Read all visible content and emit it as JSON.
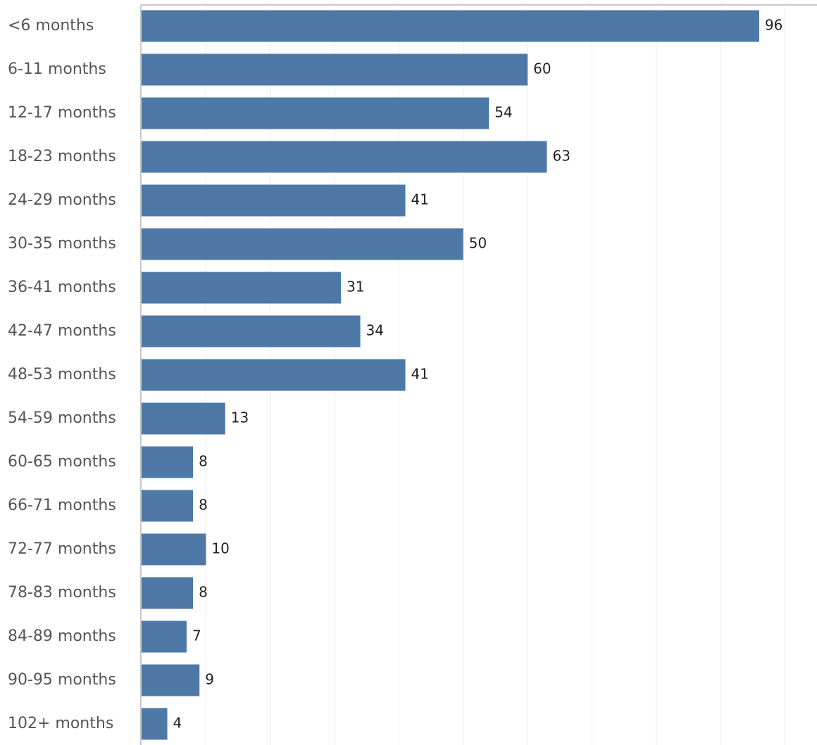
{
  "chart_data": {
    "type": "bar",
    "orientation": "horizontal",
    "categories": [
      "<6 months",
      "6-11 months",
      "12-17 months",
      "18-23 months",
      "24-29 months",
      "30-35 months",
      "36-41 months",
      "42-47 months",
      "48-53 months",
      "54-59 months",
      "60-65 months",
      "66-71 months",
      "72-77 months",
      "78-83 months",
      "84-89 months",
      "90-95 months",
      "102+ months"
    ],
    "values": [
      96,
      60,
      54,
      63,
      41,
      50,
      31,
      34,
      41,
      13,
      8,
      8,
      10,
      8,
      7,
      9,
      4
    ],
    "title": "",
    "xlabel": "",
    "ylabel": "",
    "xlim": [
      0,
      105
    ],
    "grid": true,
    "data_labels": true,
    "bar_color": "#4e79a7"
  }
}
